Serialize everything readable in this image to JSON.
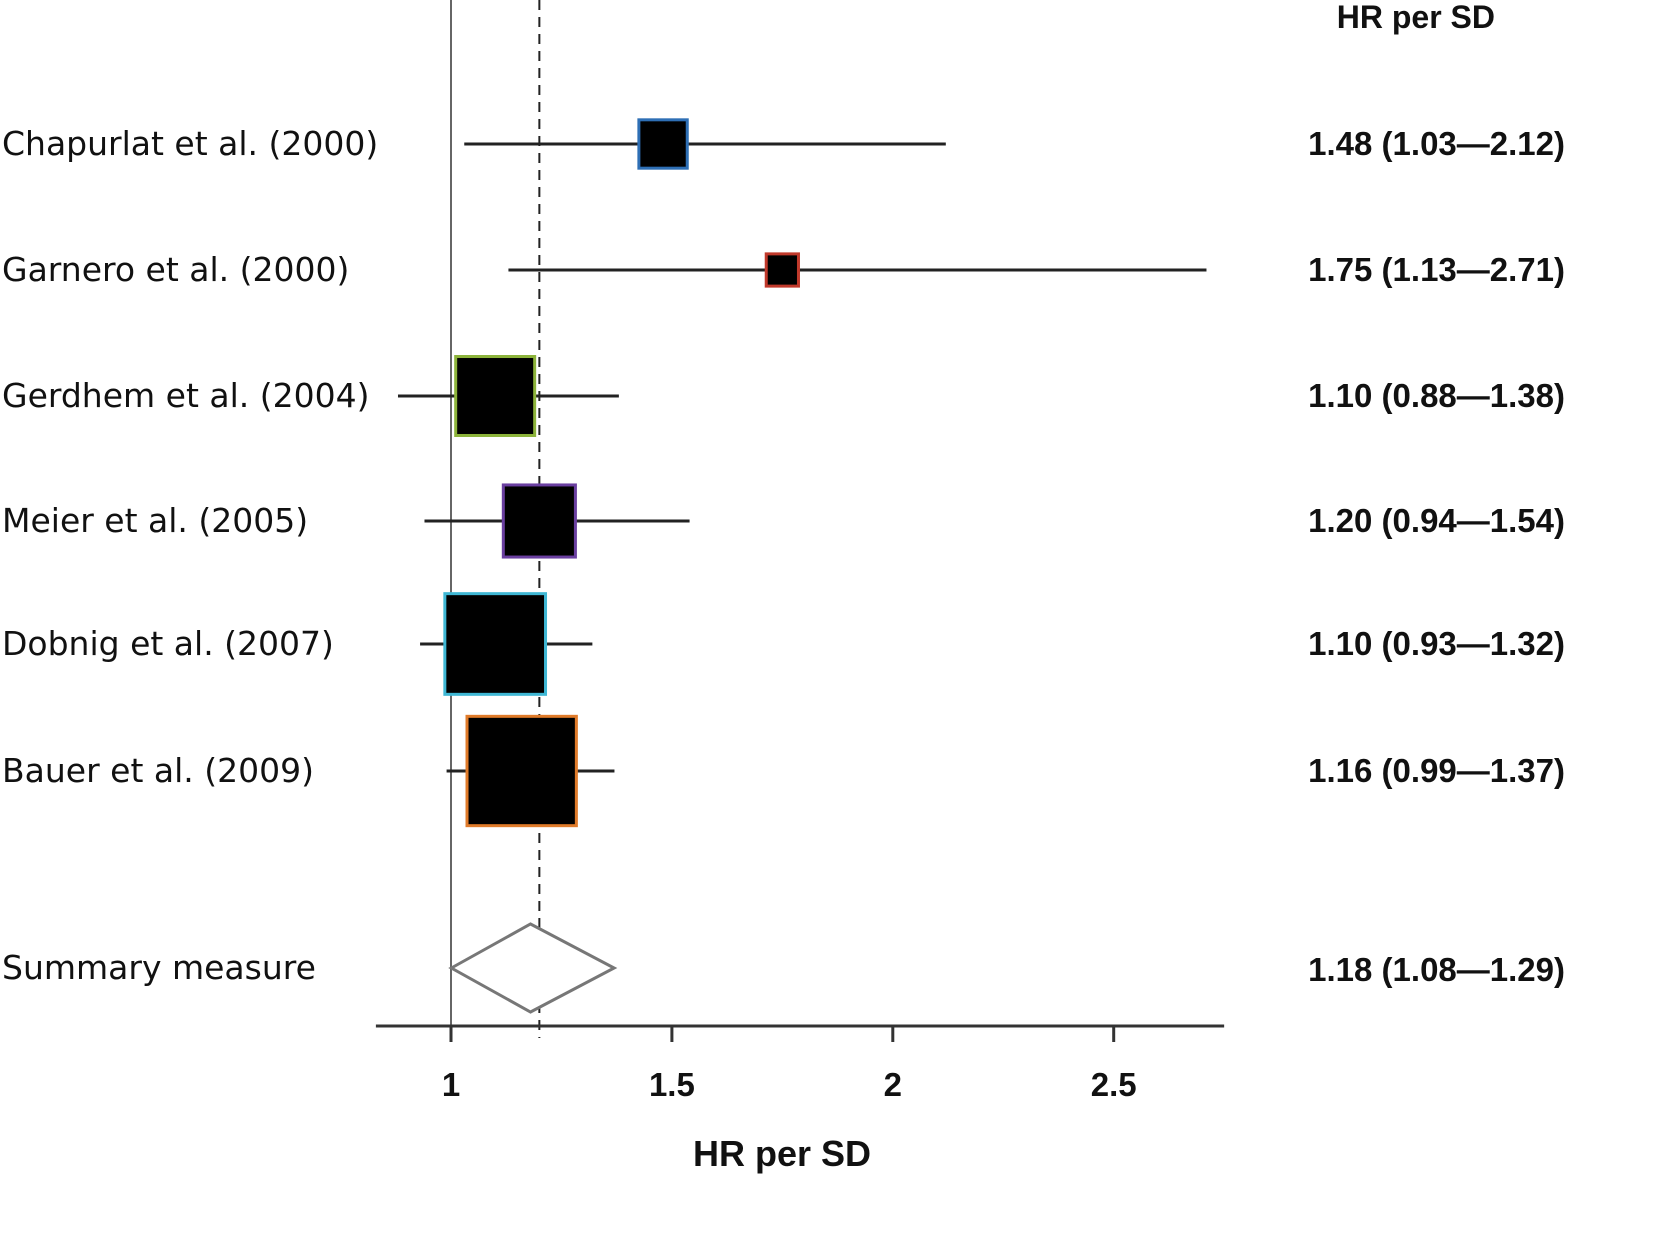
{
  "chart_data": {
    "type": "forest",
    "title": "",
    "xlabel": "HR per SD",
    "ylabel": "",
    "column_header": "HR per SD",
    "xlim": [
      0.83,
      2.75
    ],
    "x_ticks": [
      1,
      1.5,
      2,
      2.5
    ],
    "x_tick_labels": [
      "1",
      "1.5",
      "2",
      "2.5"
    ],
    "null_line": 1,
    "reference_line": 1.2,
    "studies": [
      {
        "label": "Chapurlat et al. (2000)",
        "hr": 1.48,
        "lower": 1.03,
        "upper": 2.12,
        "text": "1.48 (1.03—2.12)",
        "weight": 0.18,
        "border_color": "#2e6fb5"
      },
      {
        "label": "Garnero et al. (2000)",
        "hr": 1.75,
        "lower": 1.13,
        "upper": 2.71,
        "text": "1.75 (1.13—2.71)",
        "weight": 0.08,
        "border_color": "#c0392b"
      },
      {
        "label": "Gerdhem et al. (2004)",
        "hr": 1.1,
        "lower": 0.88,
        "upper": 1.38,
        "text": "1.10 (0.88—1.38)",
        "weight": 0.48,
        "border_color": "#8cb33a"
      },
      {
        "label": "Meier et al. (2005)",
        "hr": 1.2,
        "lower": 0.94,
        "upper": 1.54,
        "text": "1.20 (0.94—1.54)",
        "weight": 0.4,
        "border_color": "#6a3fa0"
      },
      {
        "label": "Dobnig et al. (2007)",
        "hr": 1.1,
        "lower": 0.93,
        "upper": 1.32,
        "text": "1.10 (0.93—1.32)",
        "weight": 0.78,
        "border_color": "#3fb7d4"
      },
      {
        "label": "Bauer et al. (2009)",
        "hr": 1.16,
        "lower": 0.99,
        "upper": 1.37,
        "text": "1.16 (0.99—1.37)",
        "weight": 0.92,
        "border_color": "#e07b2a"
      }
    ],
    "summary": {
      "label": "Summary measure",
      "hr": 1.18,
      "lower": 1.08,
      "upper": 1.29,
      "text": "1.18 (1.08—1.29)"
    },
    "grid": false,
    "legend": "none"
  }
}
